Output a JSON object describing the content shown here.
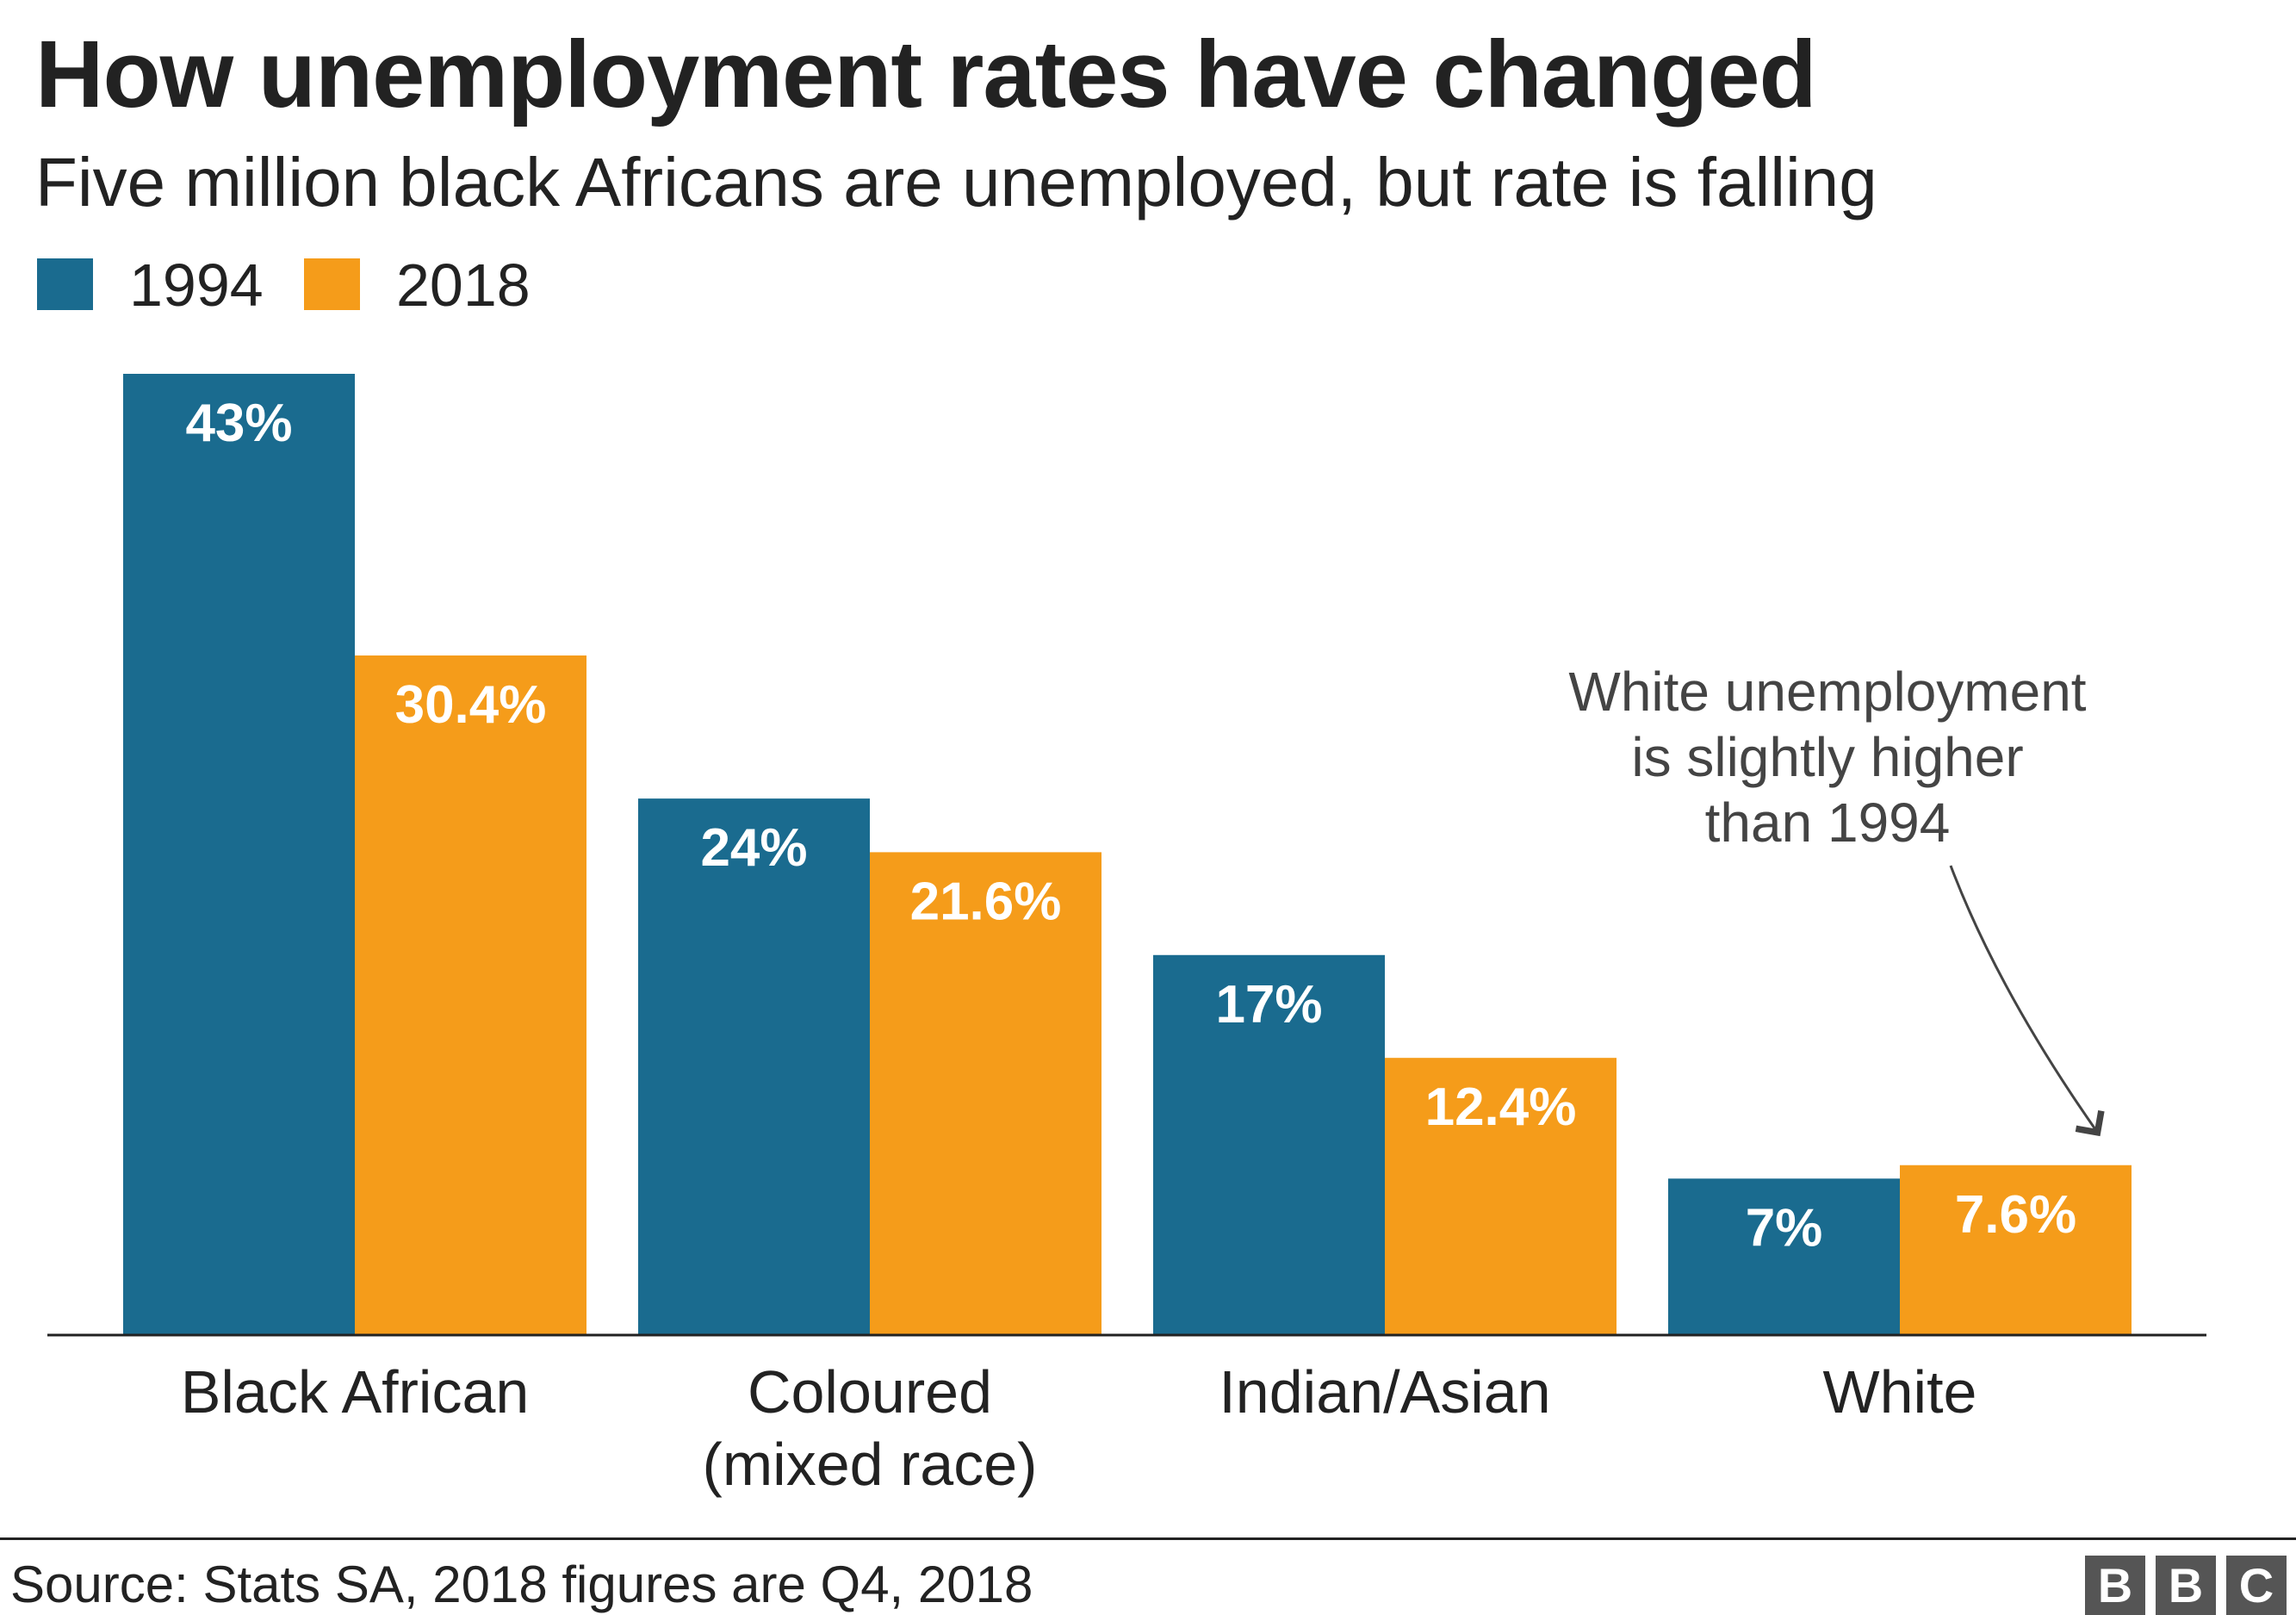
{
  "chart_data": {
    "type": "bar",
    "title": "How unemployment rates have changed",
    "subtitle": "Five million black Africans are unemployed, but rate is falling",
    "categories": [
      [
        "Black African"
      ],
      [
        "Coloured",
        "(mixed race)"
      ],
      [
        "Indian/Asian"
      ],
      [
        "White"
      ]
    ],
    "series": [
      {
        "name": "1994",
        "color": "#1a6b8f",
        "values": [
          43,
          24,
          17,
          7
        ],
        "labels": [
          "43%",
          "24%",
          "17%",
          "7%"
        ]
      },
      {
        "name": "2018",
        "color": "#f59c1a",
        "values": [
          30.4,
          21.6,
          12.4,
          7.6
        ],
        "labels": [
          "30.4%",
          "21.6%",
          "12.4%",
          "7.6%"
        ]
      }
    ],
    "ylim": [
      0,
      43
    ],
    "grid": false,
    "legend": "top-left",
    "annotation": {
      "lines": [
        "White unemployment",
        "is slightly higher",
        "than 1994"
      ],
      "target": "White 2018"
    },
    "source": "Source: Stats SA, 2018 figures are Q4, 2018"
  },
  "logo": {
    "letters": [
      "B",
      "B",
      "C"
    ]
  }
}
